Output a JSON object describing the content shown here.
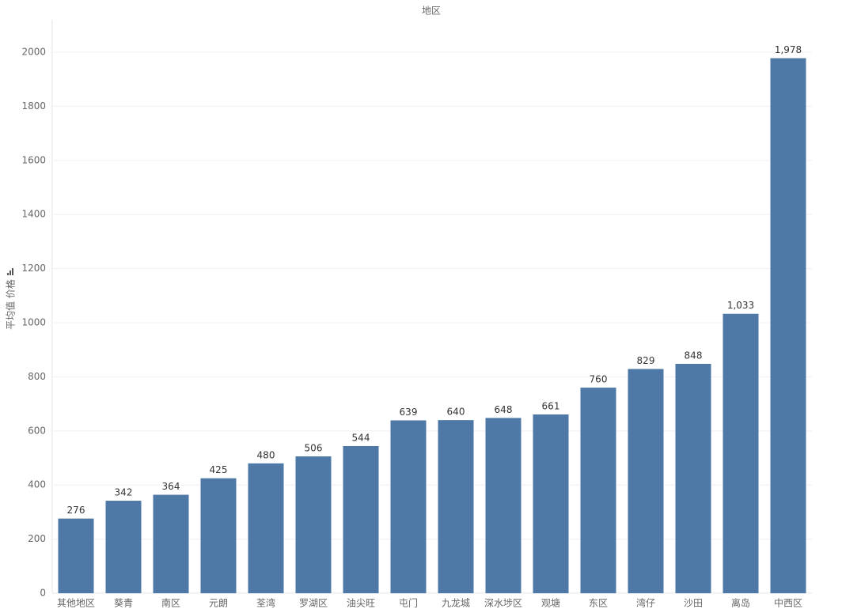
{
  "chart_data": {
    "type": "bar",
    "title": "地区",
    "y_label": "平均值 价格",
    "categories": [
      "其他地区",
      "葵青",
      "南区",
      "元朗",
      "荃湾",
      "罗湖区",
      "油尖旺",
      "屯门",
      "九龙城",
      "深水埗区",
      "观塘",
      "东区",
      "湾仔",
      "沙田",
      "离岛",
      "中西区"
    ],
    "values": [
      276,
      342,
      364,
      425,
      480,
      506,
      544,
      639,
      640,
      648,
      661,
      760,
      829,
      848,
      1033,
      1978
    ],
    "value_labels": [
      "276",
      "342",
      "364",
      "425",
      "480",
      "506",
      "544",
      "639",
      "640",
      "648",
      "661",
      "760",
      "829",
      "848",
      "1,033",
      "1,978"
    ],
    "color": "#4e79a7",
    "ylim": [
      0,
      2120
    ],
    "yticks": [
      0,
      200,
      400,
      600,
      800,
      1000,
      1200,
      1400,
      1600,
      1800,
      2000
    ],
    "grid": true
  }
}
